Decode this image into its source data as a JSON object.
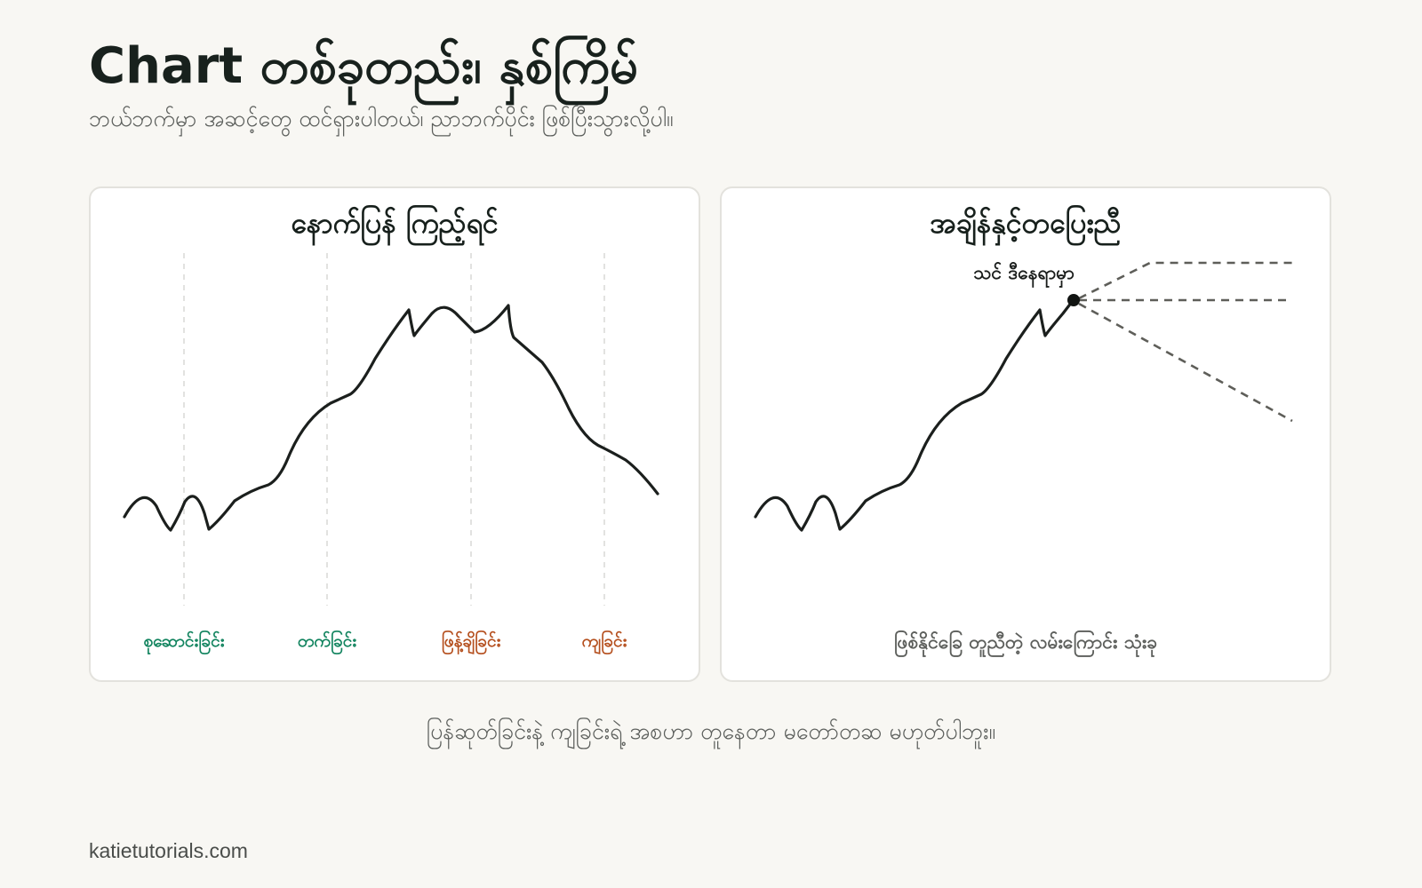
{
  "header": {
    "title": "Chart တစ်ခုတည်း၊ နှစ်ကြိမ်",
    "subtitle": "ဘယ်ဘက်မှာ အဆင့်တွေ ထင်ရှားပါတယ်၊ ညာဘက်ပိုင်း ဖြစ်ပြီးသွားလို့ပါ။"
  },
  "left_panel": {
    "title": "နောက်ပြန် ကြည့်ရင်",
    "stages": [
      {
        "label": "စုဆောင်းခြင်း",
        "color": "#12845f"
      },
      {
        "label": "တက်ခြင်း",
        "color": "#12845f"
      },
      {
        "label": "ဖြန့်ချိခြင်း",
        "color": "#b5501f"
      },
      {
        "label": "ကျခြင်း",
        "color": "#b5501f"
      }
    ]
  },
  "right_panel": {
    "title": "အချိန်နှင့်တပြေးညီ",
    "marker_label": "သင် ဒီနေရာမှာ",
    "caption": "ဖြစ်နိုင်ခြေ တူညီတဲ့ လမ်းကြောင်း သုံးခု"
  },
  "bottom_note": "ပြန်ဆုတ်ခြင်းနဲ့ ကျခြင်းရဲ့ အစဟာ တူနေတာ မတော်တဆ မဟုတ်ပါဘူး။",
  "footer": {
    "credit": "katietutorials.com"
  },
  "colors": {
    "line": "#1b1f1d",
    "dashed_paths": "#5e5e59",
    "accumulation": "#12845f",
    "distribution": "#b5501f",
    "divider": "#d9d9d6"
  }
}
